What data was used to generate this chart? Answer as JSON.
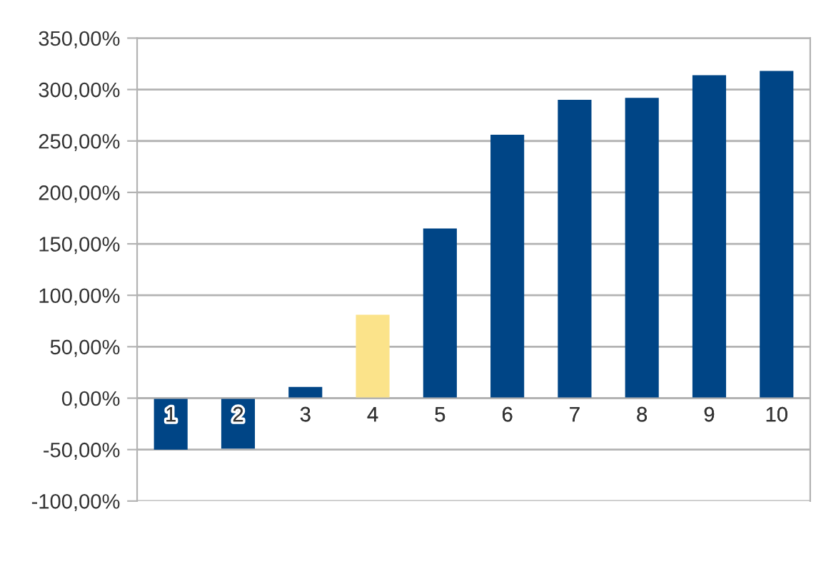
{
  "chart_data": {
    "type": "bar",
    "categories": [
      "1",
      "2",
      "3",
      "4",
      "5",
      "6",
      "7",
      "8",
      "9",
      "10"
    ],
    "values": [
      -50,
      -49,
      11,
      81,
      165,
      256,
      290,
      292,
      314,
      318
    ],
    "colors": [
      "#004586",
      "#004586",
      "#004586",
      "#fbe38a",
      "#004586",
      "#004586",
      "#004586",
      "#004586",
      "#004586",
      "#004586"
    ],
    "ylim": [
      -100,
      350
    ],
    "yticks": [
      {
        "value": -100,
        "label": "-100,00%"
      },
      {
        "value": -50,
        "label": "-50,00%"
      },
      {
        "value": 0,
        "label": "0,00%"
      },
      {
        "value": 50,
        "label": "50,00%"
      },
      {
        "value": 100,
        "label": "100,00%"
      },
      {
        "value": 150,
        "label": "150,00%"
      },
      {
        "value": 200,
        "label": "200,00%"
      },
      {
        "value": 250,
        "label": "250,00%"
      },
      {
        "value": 300,
        "label": "300,00%"
      },
      {
        "value": 350,
        "label": "350,00%"
      }
    ],
    "grid": "y",
    "legend": false
  }
}
